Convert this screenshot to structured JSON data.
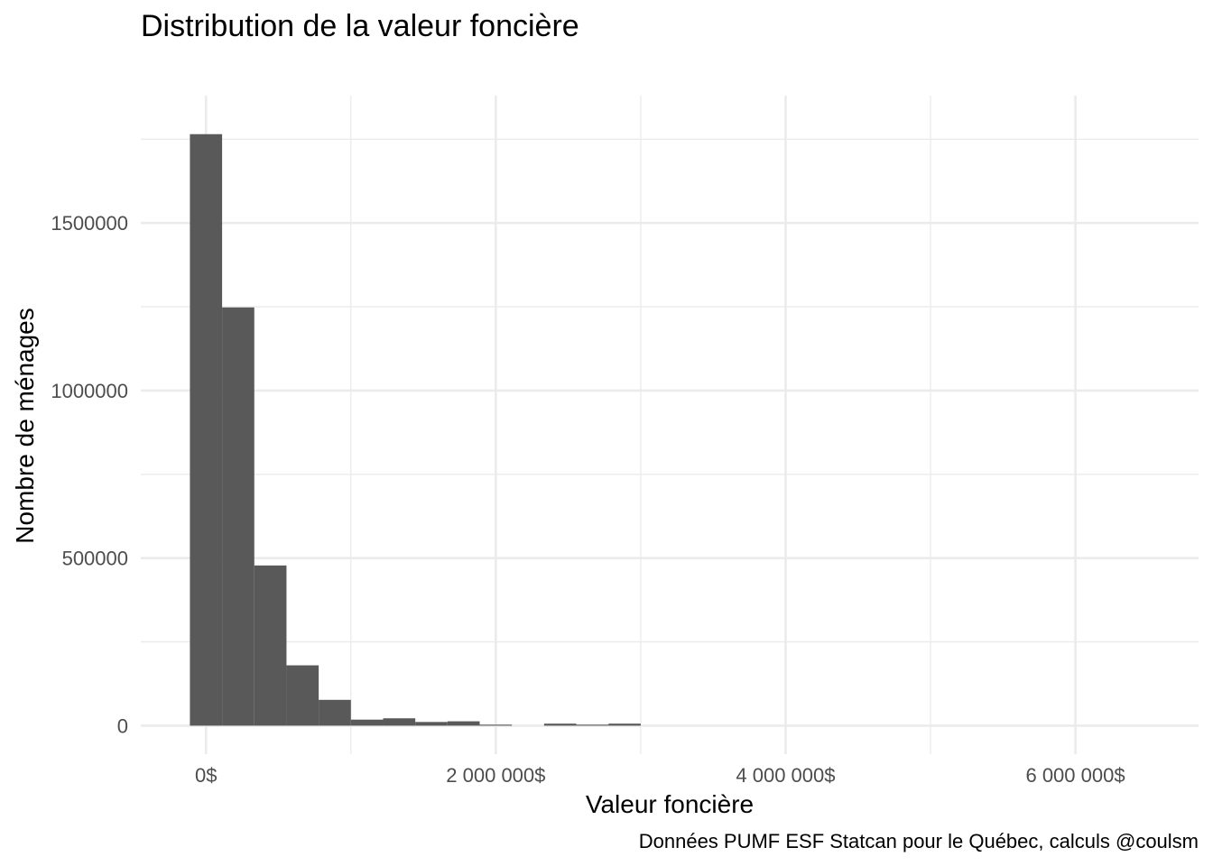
{
  "chart_data": {
    "type": "bar",
    "title": "Distribution de la valeur foncière",
    "xlabel": "Valeur foncière",
    "ylabel": "Nombre de ménages",
    "caption": "Données PUMF ESF Statcan pour le Québec, calculs @coulsm",
    "xlim": [
      -450000,
      6850000
    ],
    "ylim": [
      -85000,
      1880000
    ],
    "x_ticks": [
      0,
      2000000,
      4000000,
      6000000
    ],
    "x_tick_labels": [
      "0$",
      "2 000 000$",
      "4 000 000$",
      "6 000 000$"
    ],
    "y_ticks": [
      0,
      500000,
      1000000,
      1500000
    ],
    "y_tick_labels": [
      "0",
      "500000",
      "1000000",
      "1500000"
    ],
    "bin_width": 222222,
    "bins": [
      {
        "center": 0,
        "count": 1765000
      },
      {
        "center": 222222,
        "count": 1248000
      },
      {
        "center": 444444,
        "count": 478000
      },
      {
        "center": 666667,
        "count": 180000
      },
      {
        "center": 888889,
        "count": 77000
      },
      {
        "center": 1111111,
        "count": 18000
      },
      {
        "center": 1333333,
        "count": 22000
      },
      {
        "center": 1555556,
        "count": 11000
      },
      {
        "center": 1777778,
        "count": 13000
      },
      {
        "center": 2000000,
        "count": 3000
      },
      {
        "center": 2222222,
        "count": 0
      },
      {
        "center": 2444444,
        "count": 6000
      },
      {
        "center": 2666667,
        "count": 3000
      },
      {
        "center": 2888889,
        "count": 6000
      }
    ],
    "grid": true,
    "legend": "none",
    "bar_color": "#595959"
  }
}
